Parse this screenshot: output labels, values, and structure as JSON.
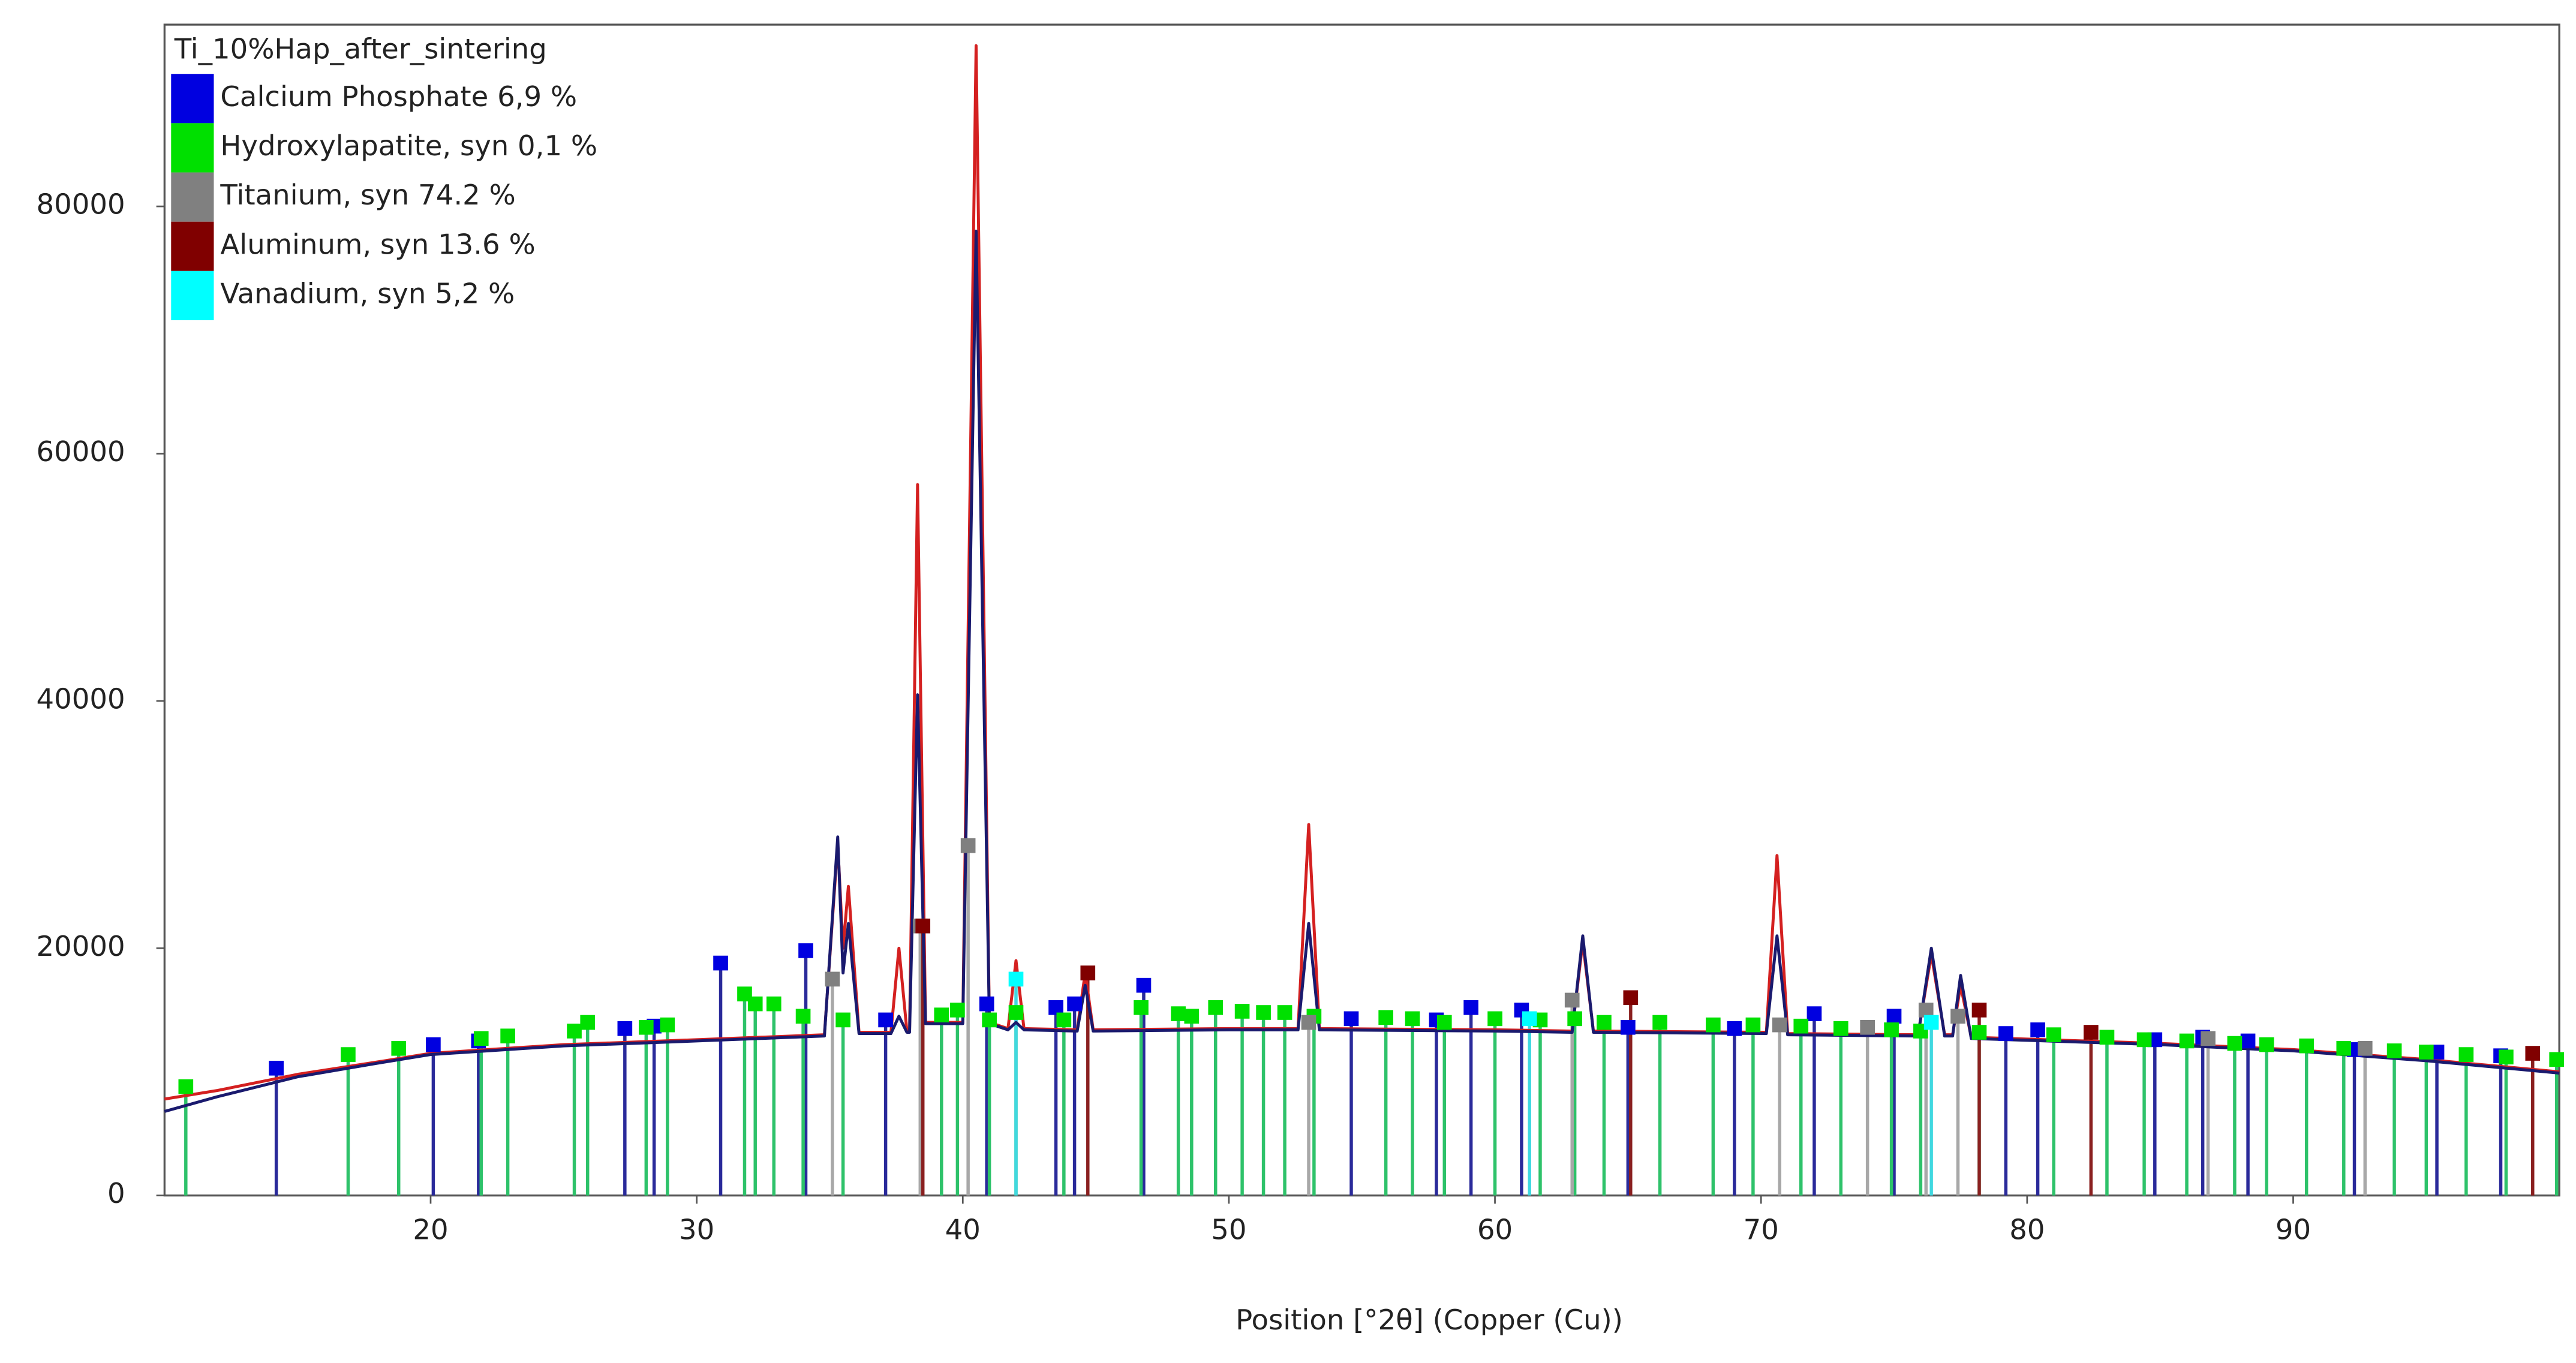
{
  "chart_data": {
    "type": "line",
    "legend_title": "Ti_10%Hap_after_sintering",
    "xlabel": "Position [°2θ] (Copper (Cu))",
    "xlim": [
      10,
      100
    ],
    "ylim": [
      0,
      94700
    ],
    "xticks": [
      20,
      30,
      40,
      50,
      60,
      70,
      80,
      90
    ],
    "yticks": [
      0,
      20000,
      40000,
      60000,
      80000
    ],
    "x": [
      10,
      12,
      15,
      18,
      20,
      25,
      30,
      34.8,
      35.3,
      35.5,
      35.7,
      36.1,
      37.3,
      37.6,
      37.9,
      38.0,
      38.3,
      38.6,
      40.0,
      40.5,
      41.0,
      41.7,
      42.0,
      42.3,
      44.3,
      44.6,
      44.9,
      50,
      52.6,
      53.0,
      53.4,
      60,
      62.9,
      63.3,
      63.7,
      70.2,
      70.6,
      71.0,
      75.9,
      76.4,
      76.9,
      77.2,
      77.5,
      77.9,
      85,
      90,
      95,
      100
    ],
    "series": [
      {
        "color": "#d42020",
        "values": [
          7800,
          8500,
          9800,
          10800,
          11500,
          12200,
          12600,
          13000,
          28500,
          20000,
          25000,
          13200,
          13200,
          20000,
          13300,
          13300,
          57500,
          14000,
          14000,
          93000,
          14000,
          13500,
          19000,
          13500,
          13400,
          18000,
          13400,
          13500,
          13500,
          30000,
          13500,
          13400,
          13300,
          20500,
          13300,
          13200,
          27500,
          13100,
          13000,
          19500,
          13000,
          13000,
          17000,
          12800,
          12300,
          11800,
          11000,
          10000
        ]
      },
      {
        "color": "#1a1a6e",
        "values": [
          6800,
          8000,
          9600,
          10700,
          11400,
          12100,
          12500,
          12900,
          29000,
          18000,
          22000,
          13100,
          13100,
          14500,
          13200,
          13200,
          40500,
          13900,
          13900,
          78000,
          13900,
          13400,
          14000,
          13400,
          13300,
          17000,
          13300,
          13400,
          13400,
          22000,
          13400,
          13300,
          13200,
          21000,
          13200,
          13100,
          21000,
          13000,
          12900,
          20000,
          12900,
          12900,
          17800,
          12700,
          12200,
          11700,
          10900,
          9900
        ]
      }
    ],
    "phases": [
      {
        "name": "Calcium Phosphate 6,9 %",
        "color": "#0000e0",
        "stick_color": "#2a2a9a",
        "peaks_x": [
          14.2,
          20.1,
          21.8,
          27.3,
          28.4,
          30.9,
          34.1,
          37.1,
          40.9,
          43.5,
          44.2,
          46.8,
          54.6,
          57.8,
          59.1,
          61.0,
          65.0,
          69.0,
          72.0,
          75.0,
          79.2,
          80.4,
          84.8,
          86.6,
          88.3,
          92.3,
          95.4,
          97.8
        ],
        "peaks_y": [
          10300,
          12200,
          12500,
          13500,
          13700,
          18800,
          19800,
          14200,
          15500,
          15200,
          15500,
          17000,
          14300,
          14200,
          15200,
          15000,
          13600,
          13500,
          14700,
          14500,
          13100,
          13400,
          12600,
          12800,
          12500,
          11800,
          11600,
          11300
        ]
      },
      {
        "name": "Hydroxylapatite, syn 0,1 %",
        "color": "#00e000",
        "stick_color": "#2ec26a",
        "peaks_x": [
          10.8,
          16.9,
          18.8,
          21.9,
          22.9,
          25.4,
          25.9,
          28.1,
          28.9,
          31.8,
          32.2,
          32.9,
          34.0,
          35.5,
          39.2,
          39.8,
          41.0,
          42.0,
          43.8,
          46.7,
          48.1,
          48.6,
          49.5,
          50.5,
          51.3,
          52.1,
          53.2,
          55.9,
          56.9,
          58.1,
          60.0,
          61.7,
          63.0,
          64.1,
          66.2,
          68.2,
          69.7,
          71.5,
          73.0,
          74.9,
          76.0,
          78.2,
          81.0,
          83.0,
          84.4,
          86.0,
          87.8,
          89.0,
          90.5,
          91.9,
          93.8,
          95.0,
          96.5,
          98.0,
          99.9
        ],
        "peaks_y": [
          8800,
          11400,
          11900,
          12700,
          12900,
          13300,
          14000,
          13600,
          13800,
          16300,
          15500,
          15500,
          14500,
          14200,
          14600,
          15000,
          14200,
          14800,
          14200,
          15200,
          14700,
          14500,
          15200,
          14900,
          14800,
          14800,
          14500,
          14400,
          14300,
          14000,
          14300,
          14200,
          14300,
          14000,
          14000,
          13800,
          13800,
          13700,
          13500,
          13400,
          13300,
          13200,
          13000,
          12800,
          12600,
          12500,
          12300,
          12200,
          12100,
          11900,
          11700,
          11600,
          11400,
          11200,
          11000
        ]
      },
      {
        "name": "Titanium, syn 74.2 %",
        "color": "#808080",
        "stick_color": "#a8a8a8",
        "peaks_x": [
          35.1,
          38.4,
          40.2,
          53.0,
          62.9,
          70.7,
          74.0,
          76.2,
          77.4,
          86.8,
          92.7
        ],
        "peaks_y": [
          17500,
          21800,
          28300,
          14000,
          15800,
          13800,
          13600,
          15000,
          14500,
          12700,
          11900
        ]
      },
      {
        "name": "Aluminum, syn 13.6 %",
        "color": "#800000",
        "stick_color": "#8a2020",
        "peaks_x": [
          38.5,
          44.7,
          65.1,
          78.2,
          82.4,
          99.0
        ],
        "peaks_y": [
          21800,
          18000,
          16000,
          15000,
          13200,
          11500
        ]
      },
      {
        "name": "Vanadium, syn 5,2 %",
        "color": "#00ffff",
        "stick_color": "#40d8e0",
        "peaks_x": [
          42.0,
          61.3,
          76.4
        ],
        "peaks_y": [
          17500,
          14300,
          14000
        ]
      }
    ]
  }
}
